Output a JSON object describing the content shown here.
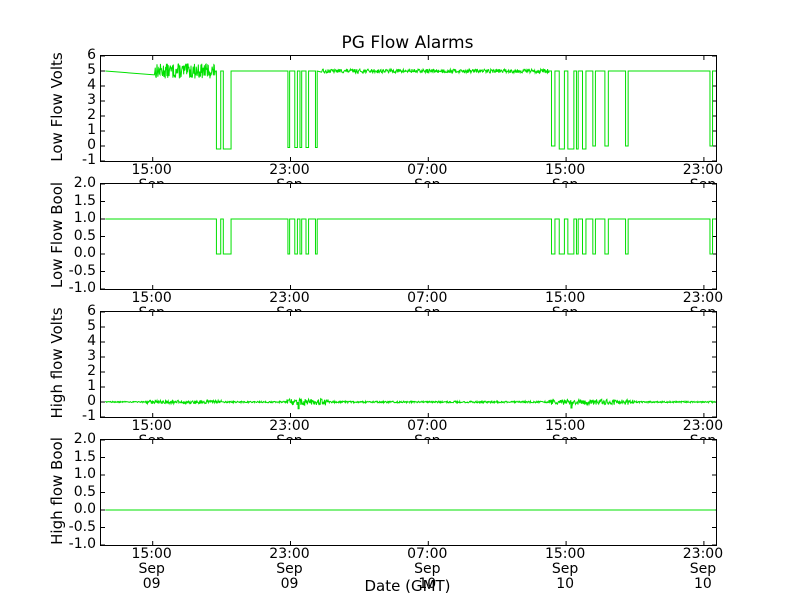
{
  "chart_data": {
    "type": "line",
    "title": "PG Flow Alarms",
    "xlabel": "Date (GMT)",
    "line_color": "#00e000",
    "x_unit": "hours since Sep 09 12:00 GMT",
    "x_domain": [
      0,
      35.7
    ],
    "x_ticks": [
      {
        "t": 3,
        "time": "15:00",
        "date": "Sep 09"
      },
      {
        "t": 11,
        "time": "23:00",
        "date": "Sep 09"
      },
      {
        "t": 19,
        "time": "07:00",
        "date": "Sep 10"
      },
      {
        "t": 27,
        "time": "15:00",
        "date": "Sep 10"
      },
      {
        "t": 35,
        "time": "23:00",
        "date": "Sep 10"
      }
    ],
    "subplots": [
      {
        "id": "low-flow-volts",
        "ylabel": "Low Flow Volts",
        "ylim": [
          -1,
          6
        ],
        "yticks": [
          {
            "v": 6,
            "label": "6"
          },
          {
            "v": 5,
            "label": "5"
          },
          {
            "v": 4,
            "label": "4"
          },
          {
            "v": 3,
            "label": "3"
          },
          {
            "v": 2,
            "label": "2"
          },
          {
            "v": 1,
            "label": "1"
          },
          {
            "v": 0,
            "label": "0"
          },
          {
            "v": -1,
            "label": "-1"
          }
        ],
        "baseline": 5,
        "t_start": 0.25,
        "t_end": 35.68,
        "features": [
          {
            "type": "noise",
            "t0": 3.1,
            "t1": 6.65,
            "amp": 0.5
          },
          {
            "type": "pulse",
            "t0": 6.7,
            "t1": 6.95,
            "low": -0.2
          },
          {
            "type": "pulse",
            "t0": 7.1,
            "t1": 7.55,
            "low": -0.2
          },
          {
            "type": "pulse",
            "t0": 10.85,
            "t1": 10.95,
            "low": -0.1
          },
          {
            "type": "pulse",
            "t0": 11.25,
            "t1": 11.4,
            "low": -0.1
          },
          {
            "type": "pulse",
            "t0": 11.55,
            "t1": 11.65,
            "low": -0.1
          },
          {
            "type": "pulse",
            "t0": 11.9,
            "t1": 12.05,
            "low": -0.1
          },
          {
            "type": "pulse",
            "t0": 12.45,
            "t1": 12.55,
            "low": -0.1
          },
          {
            "type": "noise",
            "t0": 12.8,
            "t1": 26.0,
            "amp": 0.13
          },
          {
            "type": "pulse",
            "t0": 26.15,
            "t1": 26.35,
            "low": 0
          },
          {
            "type": "pulse",
            "t0": 26.6,
            "t1": 26.9,
            "low": -0.2
          },
          {
            "type": "pulse",
            "t0": 27.1,
            "t1": 27.45,
            "low": -0.2
          },
          {
            "type": "pulse",
            "t0": 27.6,
            "t1": 27.7,
            "low": -0.2
          },
          {
            "type": "pulse",
            "t0": 27.95,
            "t1": 28.15,
            "low": -0.2
          },
          {
            "type": "pulse",
            "t0": 28.55,
            "t1": 28.7,
            "low": 0
          },
          {
            "type": "pulse",
            "t0": 29.25,
            "t1": 29.45,
            "low": 0
          },
          {
            "type": "pulse",
            "t0": 30.45,
            "t1": 30.6,
            "low": 0
          },
          {
            "type": "pulse",
            "t0": 35.35,
            "t1": 35.5,
            "low": 0
          }
        ]
      },
      {
        "id": "low-flow-bool",
        "ylabel": "Low Flow Bool",
        "ylim": [
          -1,
          2
        ],
        "yticks": [
          {
            "v": 2,
            "label": "2.0"
          },
          {
            "v": 1.5,
            "label": "1.5"
          },
          {
            "v": 1,
            "label": "1.0"
          },
          {
            "v": 0.5,
            "label": "0.5"
          },
          {
            "v": 0,
            "label": "0.0"
          },
          {
            "v": -0.5,
            "label": "-0.5"
          },
          {
            "v": -1,
            "label": "-1.0"
          }
        ],
        "baseline": 1,
        "t_start": 0.25,
        "t_end": 35.68,
        "features": [
          {
            "type": "pulse",
            "t0": 6.7,
            "t1": 6.95,
            "low": 0
          },
          {
            "type": "pulse",
            "t0": 7.1,
            "t1": 7.55,
            "low": 0
          },
          {
            "type": "pulse",
            "t0": 10.85,
            "t1": 10.95,
            "low": 0
          },
          {
            "type": "pulse",
            "t0": 11.25,
            "t1": 11.4,
            "low": 0
          },
          {
            "type": "pulse",
            "t0": 11.55,
            "t1": 11.65,
            "low": 0
          },
          {
            "type": "pulse",
            "t0": 11.9,
            "t1": 12.05,
            "low": 0
          },
          {
            "type": "pulse",
            "t0": 12.45,
            "t1": 12.55,
            "low": 0
          },
          {
            "type": "pulse",
            "t0": 26.15,
            "t1": 26.35,
            "low": 0
          },
          {
            "type": "pulse",
            "t0": 26.6,
            "t1": 26.9,
            "low": 0
          },
          {
            "type": "pulse",
            "t0": 27.1,
            "t1": 27.45,
            "low": 0
          },
          {
            "type": "pulse",
            "t0": 27.6,
            "t1": 27.7,
            "low": 0
          },
          {
            "type": "pulse",
            "t0": 27.95,
            "t1": 28.15,
            "low": 0
          },
          {
            "type": "pulse",
            "t0": 28.55,
            "t1": 28.7,
            "low": 0
          },
          {
            "type": "pulse",
            "t0": 29.25,
            "t1": 29.45,
            "low": 0
          },
          {
            "type": "pulse",
            "t0": 30.45,
            "t1": 30.6,
            "low": 0
          },
          {
            "type": "pulse",
            "t0": 35.35,
            "t1": 35.5,
            "low": 0
          }
        ]
      },
      {
        "id": "high-flow-volts",
        "ylabel": "High flow Volts",
        "ylim": [
          -1,
          6
        ],
        "yticks": [
          {
            "v": 6,
            "label": "6"
          },
          {
            "v": 5,
            "label": "5"
          },
          {
            "v": 4,
            "label": "4"
          },
          {
            "v": 3,
            "label": "3"
          },
          {
            "v": 2,
            "label": "2"
          },
          {
            "v": 1,
            "label": "1"
          },
          {
            "v": 0,
            "label": "0"
          },
          {
            "v": -1,
            "label": "-1"
          }
        ],
        "baseline": 0,
        "t_start": 0.25,
        "t_end": 35.68,
        "features": [
          {
            "type": "noise",
            "t0": 0.25,
            "t1": 2.6,
            "amp": 0.04
          },
          {
            "type": "noise",
            "t0": 2.6,
            "t1": 7.0,
            "amp": 0.12
          },
          {
            "type": "noise",
            "t0": 7.0,
            "t1": 10.8,
            "amp": 0.05
          },
          {
            "type": "noise",
            "t0": 10.8,
            "t1": 11.44,
            "amp": 0.22
          },
          {
            "type": "pulse",
            "t0": 11.44,
            "t1": 11.5,
            "low": -0.45
          },
          {
            "type": "noise",
            "t0": 11.5,
            "t1": 13.2,
            "amp": 0.22
          },
          {
            "type": "noise",
            "t0": 13.2,
            "t1": 26.0,
            "amp": 0.06
          },
          {
            "type": "noise",
            "t0": 26.0,
            "t1": 27.28,
            "amp": 0.18
          },
          {
            "type": "pulse",
            "t0": 27.28,
            "t1": 27.34,
            "low": -0.4
          },
          {
            "type": "noise",
            "t0": 27.34,
            "t1": 31.0,
            "amp": 0.18
          },
          {
            "type": "noise",
            "t0": 31.0,
            "t1": 35.68,
            "amp": 0.05
          }
        ]
      },
      {
        "id": "high-flow-bool",
        "ylabel": "High flow Bool",
        "ylim": [
          -1,
          2
        ],
        "yticks": [
          {
            "v": 2,
            "label": "2.0"
          },
          {
            "v": 1.5,
            "label": "1.5"
          },
          {
            "v": 1,
            "label": "1.0"
          },
          {
            "v": 0.5,
            "label": "0.5"
          },
          {
            "v": 0,
            "label": "0.0"
          },
          {
            "v": -0.5,
            "label": "-0.5"
          },
          {
            "v": -1,
            "label": "-1.0"
          }
        ],
        "baseline": 0,
        "t_start": 0.25,
        "t_end": 35.68,
        "features": []
      }
    ]
  }
}
